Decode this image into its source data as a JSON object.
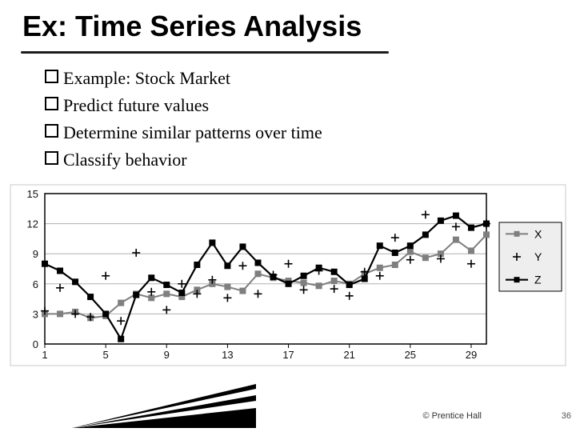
{
  "title": "Ex:  Time Series Analysis",
  "bullets": [
    "Example: Stock Market",
    "Predict future values",
    "Determine similar patterns over time",
    "Classify behavior"
  ],
  "footer_text": "© Prentice Hall",
  "page_number": "36",
  "title_underline_width": 460,
  "chart": {
    "type": "line",
    "background_color": "#ffffff",
    "plot_border_color": "#000000",
    "grid_color": "#b0b0b0",
    "axis_text_color": "#111111",
    "axis_fontsize": 13,
    "xlim": [
      1,
      30
    ],
    "ylim": [
      0,
      15
    ],
    "xtick_start": 1,
    "xtick_step": 4,
    "yticks": [
      0,
      3,
      6,
      9,
      12,
      15
    ],
    "legend": {
      "bg": "#eeeeee",
      "border": "#000000",
      "fontsize": 14,
      "labels": [
        "X",
        "Y",
        "Z"
      ]
    },
    "series": [
      {
        "name": "X",
        "color": "#7f7f7f",
        "line_width": 2,
        "marker": "square",
        "marker_size": 7,
        "points": [
          [
            1,
            3.0
          ],
          [
            2,
            3.0
          ],
          [
            3,
            3.2
          ],
          [
            4,
            2.6
          ],
          [
            5,
            2.8
          ],
          [
            6,
            4.1
          ],
          [
            7,
            5.0
          ],
          [
            8,
            4.6
          ],
          [
            9,
            5.0
          ],
          [
            10,
            4.7
          ],
          [
            11,
            5.4
          ],
          [
            12,
            6.0
          ],
          [
            13,
            5.7
          ],
          [
            14,
            5.3
          ],
          [
            15,
            7.0
          ],
          [
            16,
            6.6
          ],
          [
            17,
            6.3
          ],
          [
            18,
            6.1
          ],
          [
            19,
            5.8
          ],
          [
            20,
            6.3
          ],
          [
            21,
            6.0
          ],
          [
            22,
            7.0
          ],
          [
            23,
            7.6
          ],
          [
            24,
            7.9
          ],
          [
            25,
            9.2
          ],
          [
            26,
            8.6
          ],
          [
            27,
            9.0
          ],
          [
            28,
            10.4
          ],
          [
            29,
            9.3
          ],
          [
            30,
            10.9
          ]
        ]
      },
      {
        "name": "Y",
        "color": "#000000",
        "line_width": 0,
        "marker": "plus",
        "marker_size": 10,
        "points": [
          [
            1,
            3.3
          ],
          [
            2,
            5.6
          ],
          [
            3,
            3.0
          ],
          [
            4,
            2.7
          ],
          [
            5,
            6.8
          ],
          [
            6,
            2.3
          ],
          [
            7,
            9.1
          ],
          [
            8,
            5.2
          ],
          [
            9,
            3.4
          ],
          [
            10,
            6.0
          ],
          [
            11,
            5.0
          ],
          [
            12,
            6.4
          ],
          [
            13,
            4.6
          ],
          [
            14,
            7.8
          ],
          [
            15,
            5.0
          ],
          [
            16,
            6.9
          ],
          [
            17,
            8.0
          ],
          [
            18,
            5.4
          ],
          [
            19,
            7.3
          ],
          [
            20,
            5.5
          ],
          [
            21,
            4.8
          ],
          [
            22,
            7.2
          ],
          [
            23,
            6.8
          ],
          [
            24,
            10.6
          ],
          [
            25,
            8.4
          ],
          [
            26,
            12.9
          ],
          [
            27,
            8.5
          ],
          [
            28,
            11.7
          ],
          [
            29,
            8.0
          ],
          [
            30,
            12.0
          ]
        ]
      },
      {
        "name": "Z",
        "color": "#000000",
        "line_width": 2.2,
        "marker": "square",
        "marker_size": 7,
        "points": [
          [
            1,
            8.0
          ],
          [
            2,
            7.3
          ],
          [
            3,
            6.2
          ],
          [
            4,
            4.7
          ],
          [
            5,
            3.0
          ],
          [
            6,
            0.5
          ],
          [
            7,
            4.9
          ],
          [
            8,
            6.6
          ],
          [
            9,
            5.9
          ],
          [
            10,
            5.1
          ],
          [
            11,
            7.9
          ],
          [
            12,
            10.1
          ],
          [
            13,
            7.8
          ],
          [
            14,
            9.7
          ],
          [
            15,
            8.1
          ],
          [
            16,
            6.7
          ],
          [
            17,
            6.0
          ],
          [
            18,
            6.8
          ],
          [
            19,
            7.6
          ],
          [
            20,
            7.2
          ],
          [
            21,
            5.9
          ],
          [
            22,
            6.5
          ],
          [
            23,
            9.8
          ],
          [
            24,
            9.1
          ],
          [
            25,
            9.8
          ],
          [
            26,
            10.9
          ],
          [
            27,
            12.3
          ],
          [
            28,
            12.8
          ],
          [
            29,
            11.6
          ],
          [
            30,
            12.0
          ]
        ]
      }
    ]
  }
}
